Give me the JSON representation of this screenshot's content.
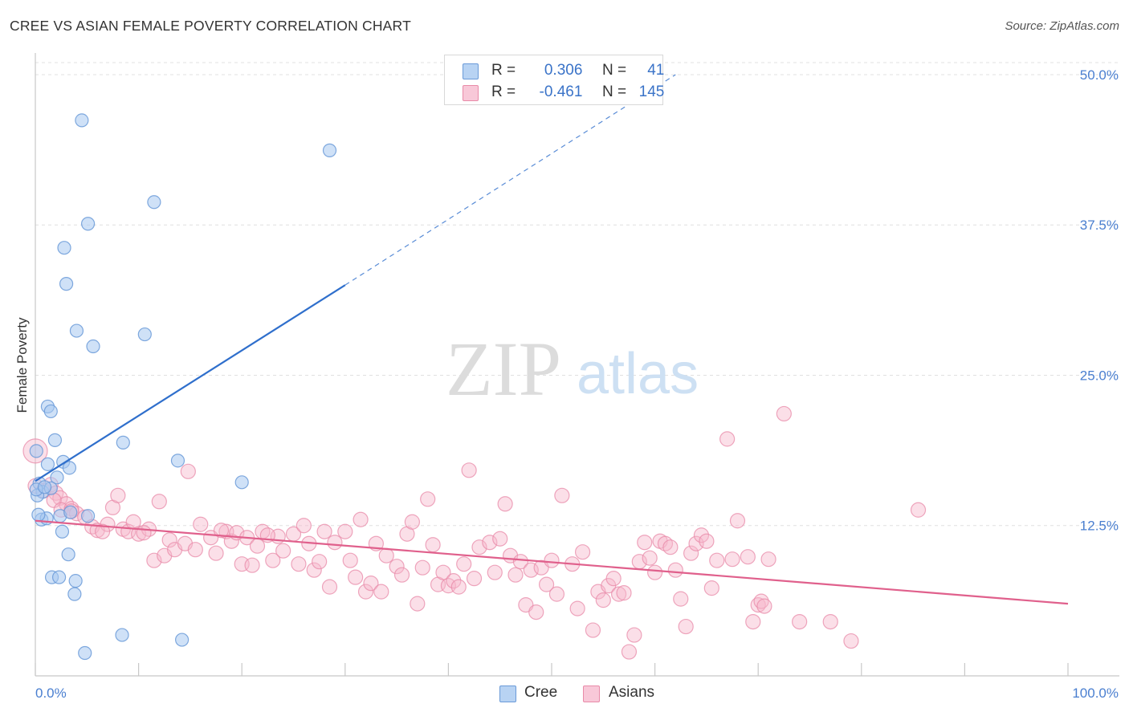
{
  "title": "CREE VS ASIAN FEMALE POVERTY CORRELATION CHART",
  "source": "Source: ZipAtlas.com",
  "watermark": {
    "zip": "ZIP",
    "atlas": "atlas"
  },
  "legend_top": [
    {
      "r_label": "R =",
      "r_value": "0.306",
      "n_label": "N =",
      "n_value": "41"
    },
    {
      "r_label": "R =",
      "r_value": "-0.461",
      "n_label": "N =",
      "n_value": "145"
    }
  ],
  "legend_bottom": [
    {
      "label": "Cree"
    },
    {
      "label": "Asians"
    }
  ],
  "colors": {
    "cree_fill": "#a8c8f0",
    "cree_stroke": "#6a9ad8",
    "cree_line": "#2f6fcc",
    "asian_fill": "#f6b8cc",
    "asian_stroke": "#e88aa8",
    "asian_line": "#e0608c",
    "tick_text": "#4a7fd0",
    "grid": "#e0e0e0"
  },
  "chart_data": {
    "type": "scatter",
    "title": "CREE VS ASIAN FEMALE POVERTY CORRELATION CHART",
    "xlabel": "",
    "ylabel": "Female Poverty",
    "xlim": [
      0,
      100
    ],
    "ylim": [
      0,
      51
    ],
    "x_tick_labels": [
      "0.0%",
      "100.0%"
    ],
    "y_ticks": [
      12.5,
      25.0,
      37.5,
      50.0
    ],
    "y_tick_labels": [
      "12.5%",
      "25.0%",
      "37.5%",
      "50.0%"
    ],
    "grid": true,
    "series": [
      {
        "name": "Cree",
        "R": 0.306,
        "N": 41,
        "trend": {
          "x": [
            0,
            30
          ],
          "y": [
            16.2,
            32.5
          ],
          "dashed_to": [
            62,
            50.0
          ]
        },
        "points": [
          [
            4.5,
            46.2
          ],
          [
            28.5,
            43.7
          ],
          [
            11.5,
            39.4
          ],
          [
            5.1,
            37.6
          ],
          [
            2.8,
            35.6
          ],
          [
            3.0,
            32.6
          ],
          [
            4.0,
            28.7
          ],
          [
            10.6,
            28.4
          ],
          [
            5.6,
            27.4
          ],
          [
            1.2,
            22.4
          ],
          [
            1.5,
            22.0
          ],
          [
            1.9,
            19.6
          ],
          [
            8.5,
            19.4
          ],
          [
            0.1,
            18.7
          ],
          [
            1.2,
            17.6
          ],
          [
            2.7,
            17.8
          ],
          [
            3.3,
            17.3
          ],
          [
            13.8,
            17.9
          ],
          [
            0.4,
            16.0
          ],
          [
            2.1,
            16.5
          ],
          [
            0.7,
            15.3
          ],
          [
            20.0,
            16.1
          ],
          [
            0.2,
            15.0
          ],
          [
            1.5,
            15.6
          ],
          [
            0.6,
            13.0
          ],
          [
            1.1,
            13.1
          ],
          [
            2.4,
            13.3
          ],
          [
            3.4,
            13.6
          ],
          [
            5.1,
            13.3
          ],
          [
            0.3,
            13.4
          ],
          [
            2.6,
            12.0
          ],
          [
            3.2,
            10.1
          ],
          [
            1.6,
            8.2
          ],
          [
            2.3,
            8.2
          ],
          [
            3.9,
            7.9
          ],
          [
            3.8,
            6.8
          ],
          [
            8.4,
            3.4
          ],
          [
            14.2,
            3.0
          ],
          [
            4.8,
            1.9
          ],
          [
            0.1,
            15.5
          ],
          [
            0.9,
            15.7
          ]
        ]
      },
      {
        "name": "Asians",
        "R": -0.461,
        "N": 145,
        "trend": {
          "x": [
            0,
            100
          ],
          "y": [
            12.9,
            6.0
          ]
        },
        "points": [
          [
            0.0,
            18.7
          ],
          [
            0.0,
            15.8
          ],
          [
            0.8,
            15.4
          ],
          [
            1.5,
            15.9
          ],
          [
            2.0,
            15.2
          ],
          [
            2.4,
            14.8
          ],
          [
            3.0,
            14.3
          ],
          [
            1.8,
            14.6
          ],
          [
            2.5,
            13.8
          ],
          [
            3.5,
            13.9
          ],
          [
            4.0,
            13.5
          ],
          [
            4.8,
            13.2
          ],
          [
            5.5,
            12.4
          ],
          [
            6.0,
            12.1
          ],
          [
            7.0,
            12.6
          ],
          [
            7.5,
            14.0
          ],
          [
            8.0,
            15.0
          ],
          [
            8.5,
            12.2
          ],
          [
            9.0,
            12.0
          ],
          [
            9.5,
            12.8
          ],
          [
            10.0,
            11.8
          ],
          [
            11.0,
            12.2
          ],
          [
            11.5,
            9.6
          ],
          [
            12.0,
            14.5
          ],
          [
            12.5,
            10.0
          ],
          [
            13.0,
            11.3
          ],
          [
            13.5,
            10.5
          ],
          [
            14.5,
            11.0
          ],
          [
            14.8,
            17.0
          ],
          [
            15.5,
            10.5
          ],
          [
            16.0,
            12.6
          ],
          [
            17.0,
            11.5
          ],
          [
            17.5,
            10.2
          ],
          [
            18.5,
            12.0
          ],
          [
            19.0,
            11.2
          ],
          [
            19.5,
            11.9
          ],
          [
            20.0,
            9.3
          ],
          [
            20.5,
            11.5
          ],
          [
            21.0,
            9.2
          ],
          [
            21.5,
            10.8
          ],
          [
            22.0,
            12.0
          ],
          [
            23.0,
            9.6
          ],
          [
            23.5,
            11.6
          ],
          [
            24.0,
            10.4
          ],
          [
            25.0,
            11.8
          ],
          [
            25.5,
            9.3
          ],
          [
            26.0,
            12.5
          ],
          [
            26.5,
            11.0
          ],
          [
            27.0,
            8.8
          ],
          [
            27.5,
            9.5
          ],
          [
            28.0,
            12.0
          ],
          [
            28.5,
            7.4
          ],
          [
            29.0,
            11.1
          ],
          [
            30.0,
            12.0
          ],
          [
            30.5,
            9.6
          ],
          [
            31.0,
            8.2
          ],
          [
            31.5,
            13.0
          ],
          [
            32.0,
            7.0
          ],
          [
            32.5,
            7.7
          ],
          [
            33.0,
            11.0
          ],
          [
            33.5,
            7.0
          ],
          [
            34.0,
            10.0
          ],
          [
            35.0,
            9.1
          ],
          [
            35.5,
            8.4
          ],
          [
            36.0,
            11.8
          ],
          [
            36.5,
            12.8
          ],
          [
            37.0,
            6.0
          ],
          [
            37.5,
            9.0
          ],
          [
            38.0,
            14.7
          ],
          [
            38.5,
            10.9
          ],
          [
            39.0,
            7.6
          ],
          [
            39.5,
            8.6
          ],
          [
            40.0,
            7.5
          ],
          [
            40.5,
            7.9
          ],
          [
            41.0,
            7.4
          ],
          [
            41.5,
            9.3
          ],
          [
            42.0,
            17.1
          ],
          [
            42.5,
            8.1
          ],
          [
            43.0,
            10.7
          ],
          [
            44.0,
            11.1
          ],
          [
            44.5,
            8.6
          ],
          [
            45.0,
            11.4
          ],
          [
            45.5,
            14.3
          ],
          [
            46.0,
            10.0
          ],
          [
            46.5,
            8.4
          ],
          [
            47.0,
            9.5
          ],
          [
            47.5,
            5.9
          ],
          [
            48.0,
            8.8
          ],
          [
            48.5,
            5.3
          ],
          [
            49.0,
            9.0
          ],
          [
            49.5,
            7.6
          ],
          [
            50.0,
            9.6
          ],
          [
            50.5,
            6.8
          ],
          [
            51.0,
            15.0
          ],
          [
            52.0,
            9.3
          ],
          [
            52.5,
            5.6
          ],
          [
            53.0,
            10.3
          ],
          [
            54.0,
            3.8
          ],
          [
            54.5,
            7.0
          ],
          [
            55.0,
            6.3
          ],
          [
            55.5,
            7.5
          ],
          [
            56.0,
            8.1
          ],
          [
            56.5,
            6.8
          ],
          [
            57.0,
            6.9
          ],
          [
            57.5,
            2.0
          ],
          [
            58.0,
            3.4
          ],
          [
            58.5,
            9.5
          ],
          [
            59.0,
            11.1
          ],
          [
            59.5,
            9.8
          ],
          [
            60.0,
            8.6
          ],
          [
            60.5,
            11.2
          ],
          [
            61.0,
            11.0
          ],
          [
            61.5,
            10.7
          ],
          [
            62.0,
            8.8
          ],
          [
            62.5,
            6.4
          ],
          [
            63.0,
            4.1
          ],
          [
            63.5,
            10.2
          ],
          [
            64.0,
            11.0
          ],
          [
            64.5,
            11.7
          ],
          [
            65.0,
            11.2
          ],
          [
            65.5,
            7.3
          ],
          [
            66.0,
            9.6
          ],
          [
            67.0,
            19.7
          ],
          [
            67.5,
            9.7
          ],
          [
            68.0,
            12.9
          ],
          [
            69.0,
            9.9
          ],
          [
            69.5,
            4.5
          ],
          [
            70.0,
            5.9
          ],
          [
            70.3,
            6.2
          ],
          [
            70.6,
            5.8
          ],
          [
            71.0,
            9.7
          ],
          [
            72.5,
            21.8
          ],
          [
            74.0,
            4.5
          ],
          [
            77.0,
            4.5
          ],
          [
            79.0,
            2.9
          ],
          [
            85.5,
            13.8
          ],
          [
            3.5,
            13.7
          ],
          [
            6.5,
            12.0
          ],
          [
            10.5,
            11.9
          ],
          [
            18.0,
            12.1
          ],
          [
            22.5,
            11.7
          ]
        ]
      }
    ]
  }
}
